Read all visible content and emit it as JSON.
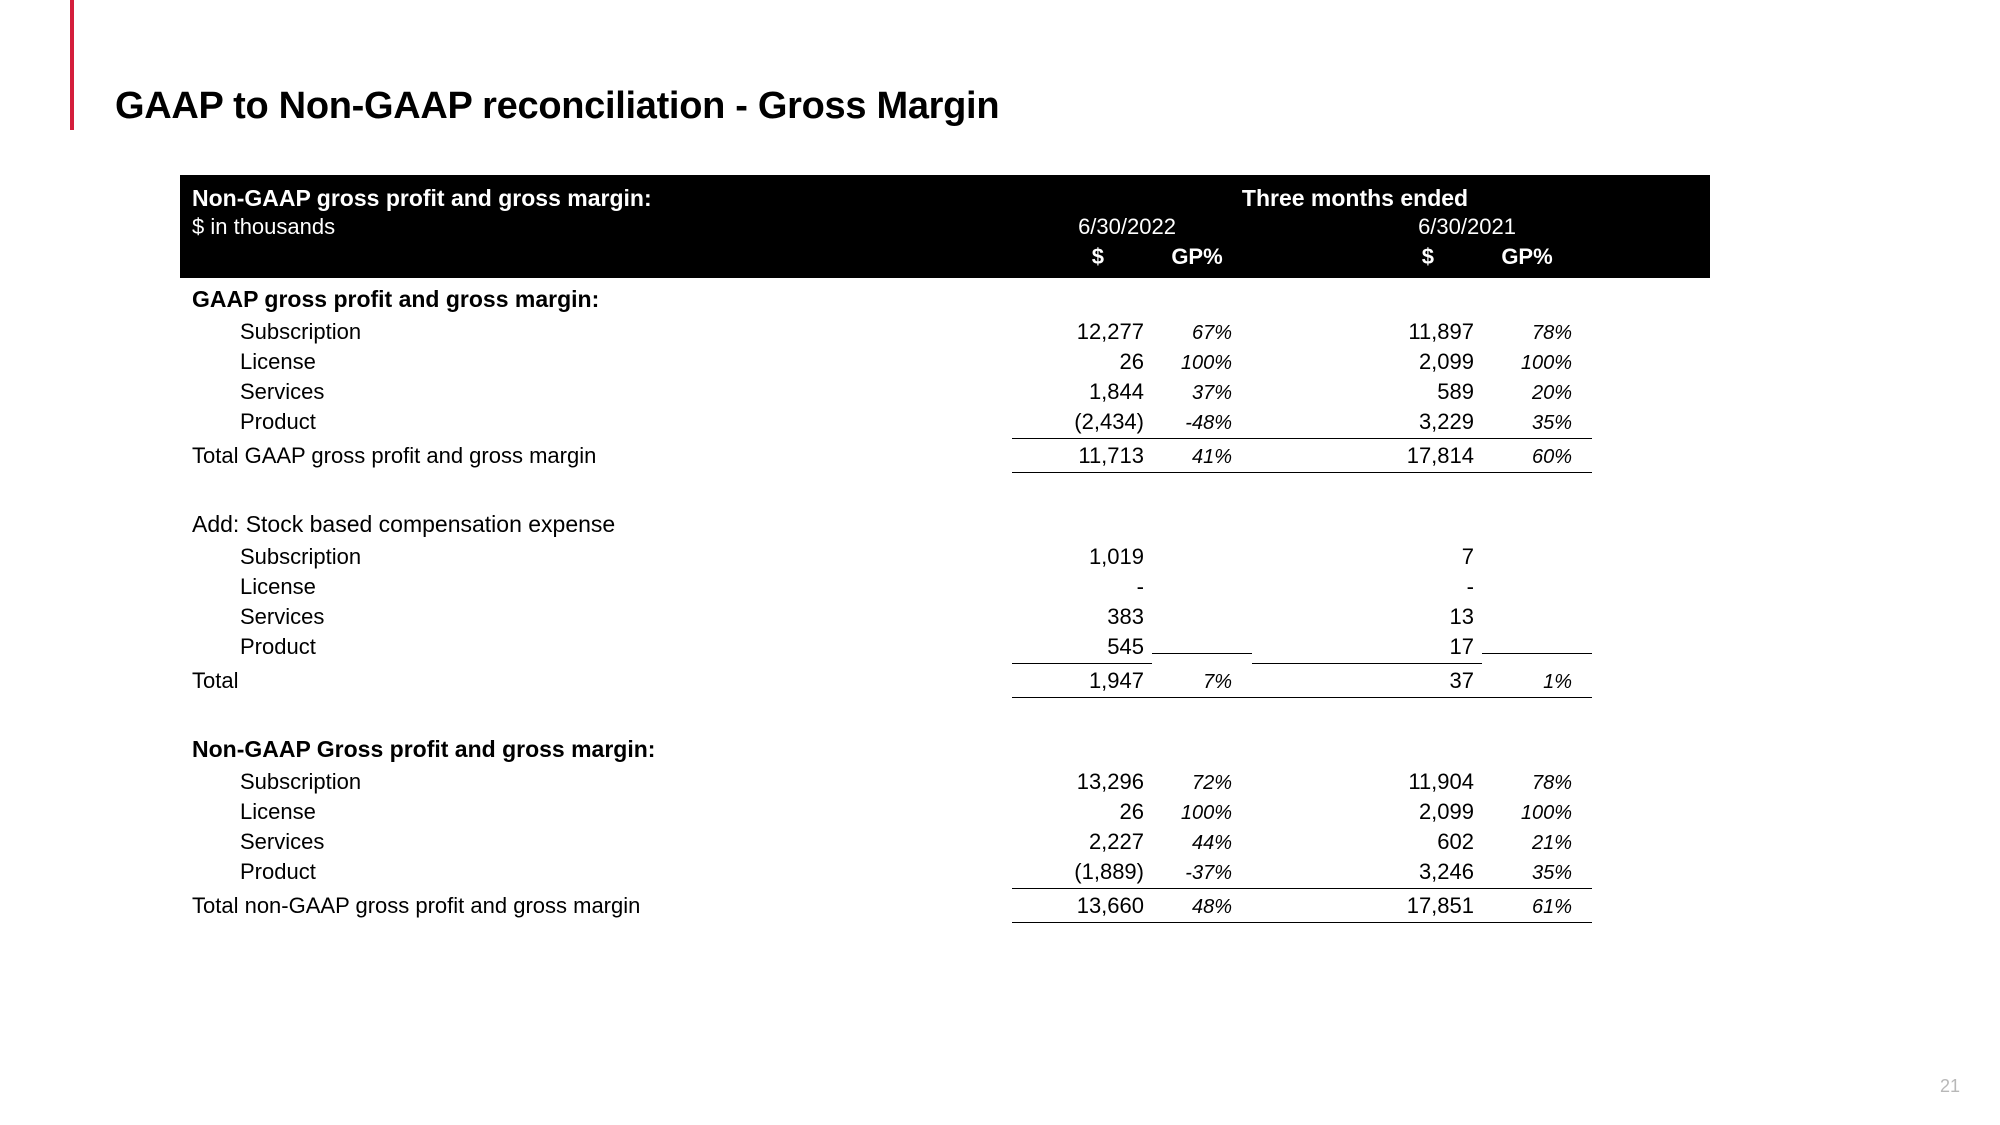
{
  "page": {
    "title": "GAAP to Non-GAAP reconciliation - Gross Margin",
    "page_number": "21",
    "accent_color": "#d41e3c"
  },
  "header": {
    "title_left": "Non-GAAP gross profit and gross margin:",
    "subtitle_left": "$ in thousands",
    "period_title": "Three months ended",
    "date1": "6/30/2022",
    "date2": "6/30/2021",
    "col_dollar": "$",
    "col_gp": "GP%",
    "bg_color": "#000000",
    "text_color": "#ffffff"
  },
  "sections": [
    {
      "heading": "GAAP gross profit and gross margin:",
      "rows": [
        {
          "label": "Subscription",
          "indent": 1,
          "d1": "12,277",
          "g1": "67%",
          "d2": "11,897",
          "g2": "78%",
          "underline": false
        },
        {
          "label": "License",
          "indent": 1,
          "d1": "26",
          "g1": "100%",
          "d2": "2,099",
          "g2": "100%",
          "underline": false
        },
        {
          "label": "Services",
          "indent": 1,
          "d1": "1,844",
          "g1": "37%",
          "d2": "589",
          "g2": "20%",
          "underline": false
        },
        {
          "label": "Product",
          "indent": 1,
          "d1": "(2,434)",
          "g1": "-48%",
          "d2": "3,229",
          "g2": "35%",
          "underline": true
        }
      ],
      "total": {
        "label": "Total GAAP gross profit and gross margin",
        "indent": 0,
        "d1": "11,713",
        "g1": "41%",
        "d2": "17,814",
        "g2": "60%"
      }
    },
    {
      "heading": "Add: Stock based compensation expense",
      "heading_bold": false,
      "rows": [
        {
          "label": "Subscription",
          "indent": 1,
          "d1": "1,019",
          "g1": "",
          "d2": "7",
          "g2": "",
          "underline": false
        },
        {
          "label": "License",
          "indent": 1,
          "d1": "-",
          "g1": "",
          "d2": "-",
          "g2": "",
          "underline": false
        },
        {
          "label": "Services",
          "indent": 1,
          "d1": "383",
          "g1": "",
          "d2": "13",
          "g2": "",
          "underline": false
        },
        {
          "label": "Product",
          "indent": 1,
          "d1": "545",
          "g1": "",
          "d2": "17",
          "g2": "",
          "underline": true
        }
      ],
      "total": {
        "label": "Total",
        "indent": 0,
        "d1": "1,947",
        "g1": "7%",
        "d2": "37",
        "g2": "1%"
      }
    },
    {
      "heading": "Non-GAAP Gross profit and gross margin:",
      "rows": [
        {
          "label": "Subscription",
          "indent": 1,
          "d1": "13,296",
          "g1": "72%",
          "d2": "11,904",
          "g2": "78%",
          "underline": false
        },
        {
          "label": "License",
          "indent": 1,
          "d1": "26",
          "g1": "100%",
          "d2": "2,099",
          "g2": "100%",
          "underline": false
        },
        {
          "label": "Services",
          "indent": 1,
          "d1": "2,227",
          "g1": "44%",
          "d2": "602",
          "g2": "21%",
          "underline": false
        },
        {
          "label": "Product",
          "indent": 1,
          "d1": "(1,889)",
          "g1": "-37%",
          "d2": "3,246",
          "g2": "35%",
          "underline": true
        }
      ],
      "total": {
        "label": "Total non-GAAP gross profit and gross margin",
        "indent": 0,
        "d1": "13,660",
        "g1": "48%",
        "d2": "17,851",
        "g2": "61%"
      }
    }
  ]
}
